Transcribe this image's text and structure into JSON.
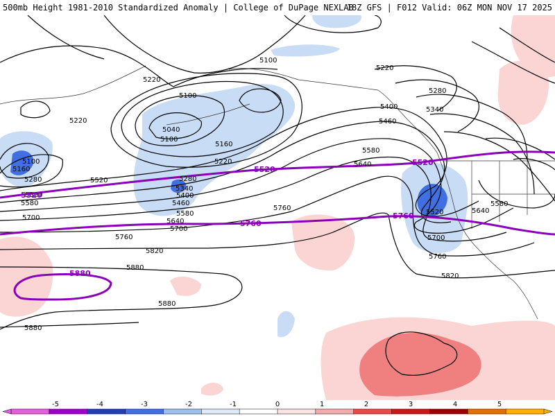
{
  "header": {
    "left": "500mb Height 1981-2010 Standardized Anomaly | College of DuPage NEXLAB",
    "right": "18Z GFS | F012 Valid: 06Z MON NOV 17 2025"
  },
  "contour_labels": [
    "5100",
    "5220",
    "5220",
    "5100",
    "5040",
    "5100",
    "5160",
    "5220",
    "5280",
    "5340",
    "5400",
    "5460",
    "5520",
    "5580",
    "5640",
    "5700",
    "5760",
    "5820",
    "5880",
    "5880",
    "5880",
    "5160",
    "5100",
    "5280",
    "5520",
    "5580",
    "5700",
    "5400",
    "5460",
    "5580",
    "5640",
    "5760",
    "5280",
    "5340",
    "5220",
    "5520",
    "5700",
    "5760",
    "5820",
    "5640",
    "5580"
  ],
  "highlight_labels": [
    "5520",
    "5520",
    "5520",
    "5760",
    "5760",
    "5880"
  ],
  "colorbar": {
    "ticks": [
      "-5",
      "-4",
      "-3",
      "-2",
      "-1",
      "0",
      "1",
      "2",
      "3",
      "4",
      "5"
    ],
    "colors": [
      "#e060e0",
      "#9a00c8",
      "#2040b0",
      "#3f6fe0",
      "#9cc0f0",
      "#dcebfb",
      "#ffffff",
      "#fde2e2",
      "#f7aaaa",
      "#e84a4a",
      "#c81818",
      "#9a0000",
      "#e07000",
      "#ffb000"
    ]
  }
}
